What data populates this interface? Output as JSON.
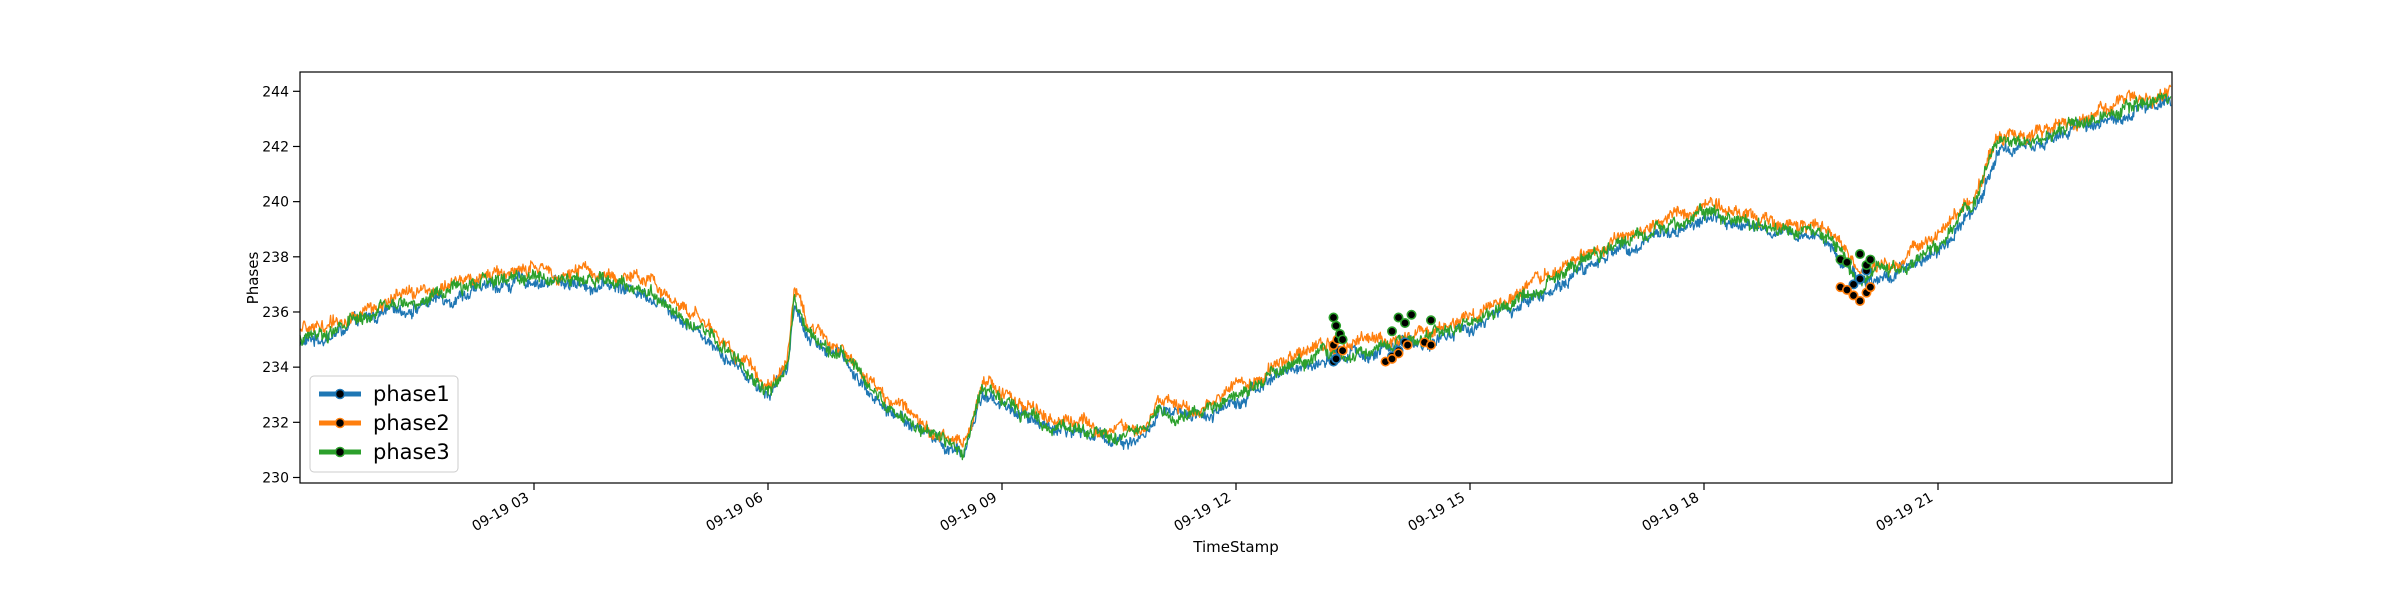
{
  "chart_data": {
    "type": "line",
    "title": "",
    "xlabel": "TimeStamp",
    "ylabel": "Phases",
    "x_range": [
      "2023-09-19 00:00",
      "2023-09-20 00:00"
    ],
    "ylim": [
      229.8,
      244.7
    ],
    "y_ticks": [
      230,
      232,
      234,
      236,
      238,
      240,
      242,
      244
    ],
    "x_ticks": [
      {
        "t": "2023-09-19 03:00",
        "label": "09-19 03"
      },
      {
        "t": "2023-09-19 06:00",
        "label": "09-19 06"
      },
      {
        "t": "2023-09-19 09:00",
        "label": "09-19 09"
      },
      {
        "t": "2023-09-19 12:00",
        "label": "09-19 12"
      },
      {
        "t": "2023-09-19 15:00",
        "label": "09-19 15"
      },
      {
        "t": "2023-09-19 18:00",
        "label": "09-19 18"
      },
      {
        "t": "2023-09-19 21:00",
        "label": "09-19 21"
      }
    ],
    "grid": false,
    "legend_position": "lower-left",
    "base_profile": [
      [
        "2023-09-19 00:00",
        235.0
      ],
      [
        "2023-09-19 00:30",
        235.4
      ],
      [
        "2023-09-19 01:00",
        236.0
      ],
      [
        "2023-09-19 01:30",
        236.4
      ],
      [
        "2023-09-19 02:00",
        236.8
      ],
      [
        "2023-09-19 02:30",
        237.1
      ],
      [
        "2023-09-19 03:00",
        237.3
      ],
      [
        "2023-09-19 03:30",
        237.2
      ],
      [
        "2023-09-19 04:00",
        237.1
      ],
      [
        "2023-09-19 04:30",
        236.8
      ],
      [
        "2023-09-19 05:00",
        235.8
      ],
      [
        "2023-09-19 05:30",
        234.5
      ],
      [
        "2023-09-19 06:00",
        233.2
      ],
      [
        "2023-09-19 06:15",
        234.0
      ],
      [
        "2023-09-19 06:20",
        236.6
      ],
      [
        "2023-09-19 06:30",
        235.3
      ],
      [
        "2023-09-19 07:00",
        234.4
      ],
      [
        "2023-09-19 07:30",
        232.6
      ],
      [
        "2023-09-19 08:00",
        231.8
      ],
      [
        "2023-09-19 08:30",
        230.9
      ],
      [
        "2023-09-19 08:45",
        233.2
      ],
      [
        "2023-09-19 09:00",
        232.8
      ],
      [
        "2023-09-19 09:30",
        232.1
      ],
      [
        "2023-09-19 10:00",
        231.8
      ],
      [
        "2023-09-19 10:30",
        231.5
      ],
      [
        "2023-09-19 10:50",
        231.6
      ],
      [
        "2023-09-19 11:00",
        232.5
      ],
      [
        "2023-09-19 11:30",
        232.2
      ],
      [
        "2023-09-19 12:00",
        233.0
      ],
      [
        "2023-09-19 12:30",
        233.8
      ],
      [
        "2023-09-19 13:00",
        234.3
      ],
      [
        "2023-09-19 13:30",
        234.6
      ],
      [
        "2023-09-19 14:00",
        234.8
      ],
      [
        "2023-09-19 14:30",
        235.1
      ],
      [
        "2023-09-19 15:00",
        235.6
      ],
      [
        "2023-09-19 15:30",
        236.2
      ],
      [
        "2023-09-19 16:00",
        236.9
      ],
      [
        "2023-09-19 16:30",
        237.8
      ],
      [
        "2023-09-19 17:00",
        238.6
      ],
      [
        "2023-09-19 17:30",
        239.0
      ],
      [
        "2023-09-19 18:00",
        239.5
      ],
      [
        "2023-09-19 18:30",
        239.3
      ],
      [
        "2023-09-19 19:00",
        238.9
      ],
      [
        "2023-09-19 19:30",
        238.9
      ],
      [
        "2023-09-19 20:00",
        237.3
      ],
      [
        "2023-09-19 20:30",
        237.6
      ],
      [
        "2023-09-19 21:00",
        238.5
      ],
      [
        "2023-09-19 21:30",
        240.0
      ],
      [
        "2023-09-19 21:45",
        242.0
      ],
      [
        "2023-09-19 22:30",
        242.5
      ],
      [
        "2023-09-19 23:00",
        242.9
      ],
      [
        "2023-09-19 23:30",
        243.4
      ],
      [
        "2023-09-19 23:59",
        243.8
      ]
    ],
    "series": [
      {
        "name": "phase1",
        "color": "#1f77b4",
        "offset": -0.15,
        "anomalies": [
          [
            "2023-09-19 13:15",
            234.2
          ],
          [
            "2023-09-19 13:17",
            234.3
          ],
          [
            "2023-09-19 13:20",
            234.6
          ],
          [
            "2023-09-19 14:00",
            234.4
          ],
          [
            "2023-09-19 14:05",
            234.6
          ],
          [
            "2023-09-19 14:10",
            234.9
          ],
          [
            "2023-09-19 19:55",
            237.0
          ],
          [
            "2023-09-19 20:00",
            237.2
          ],
          [
            "2023-09-19 20:05",
            237.5
          ]
        ]
      },
      {
        "name": "phase2",
        "color": "#ff7f0e",
        "offset": 0.25,
        "anomalies": [
          [
            "2023-09-19 13:15",
            234.8
          ],
          [
            "2023-09-19 13:18",
            235.0
          ],
          [
            "2023-09-19 13:22",
            234.6
          ],
          [
            "2023-09-19 13:55",
            234.2
          ],
          [
            "2023-09-19 14:00",
            234.3
          ],
          [
            "2023-09-19 14:05",
            234.5
          ],
          [
            "2023-09-19 14:12",
            234.8
          ],
          [
            "2023-09-19 14:25",
            234.9
          ],
          [
            "2023-09-19 14:30",
            234.8
          ],
          [
            "2023-09-19 19:45",
            236.9
          ],
          [
            "2023-09-19 19:50",
            236.8
          ],
          [
            "2023-09-19 19:55",
            236.6
          ],
          [
            "2023-09-19 20:00",
            236.4
          ],
          [
            "2023-09-19 20:05",
            236.7
          ],
          [
            "2023-09-19 20:08",
            236.9
          ]
        ]
      },
      {
        "name": "phase3",
        "color": "#2ca02c",
        "offset": 0.0,
        "anomalies": [
          [
            "2023-09-19 13:15",
            235.8
          ],
          [
            "2023-09-19 13:17",
            235.5
          ],
          [
            "2023-09-19 13:20",
            235.2
          ],
          [
            "2023-09-19 13:22",
            235.0
          ],
          [
            "2023-09-19 14:00",
            235.3
          ],
          [
            "2023-09-19 14:05",
            235.8
          ],
          [
            "2023-09-19 14:10",
            235.6
          ],
          [
            "2023-09-19 14:15",
            235.9
          ],
          [
            "2023-09-19 14:30",
            235.7
          ],
          [
            "2023-09-19 19:45",
            237.9
          ],
          [
            "2023-09-19 19:50",
            237.8
          ],
          [
            "2023-09-19 20:00",
            238.1
          ],
          [
            "2023-09-19 20:05",
            237.7
          ],
          [
            "2023-09-19 20:08",
            237.9
          ]
        ]
      }
    ]
  }
}
